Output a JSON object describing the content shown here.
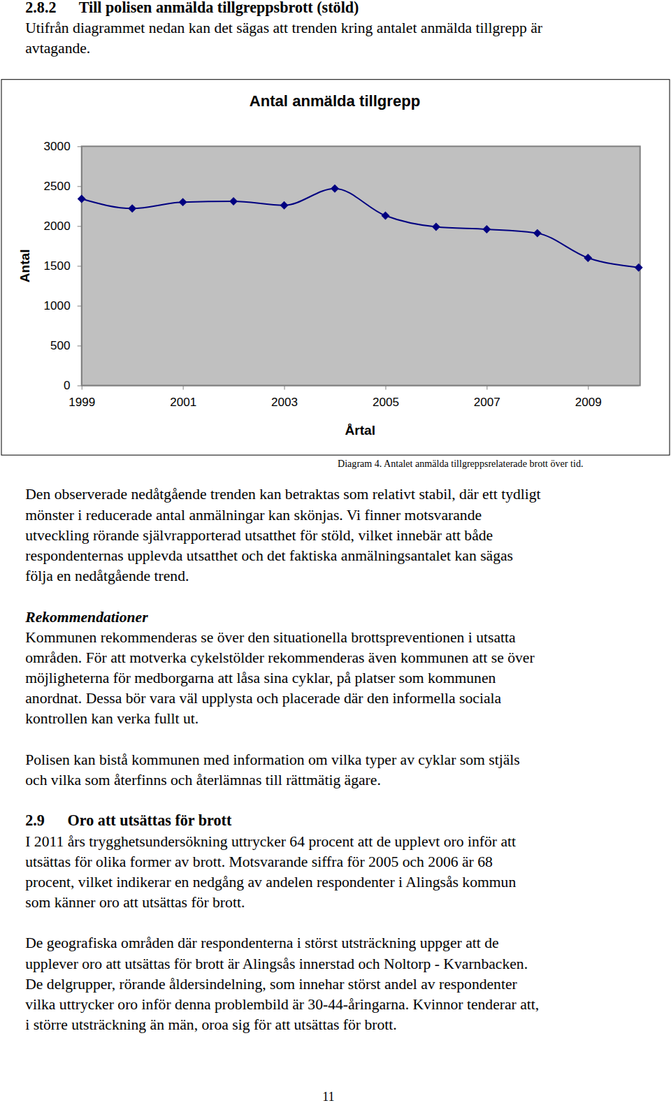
{
  "document": {
    "heading_1": {
      "number": "2.8.2",
      "text": "Till polisen anmälda tillgreppsbrott (stöld)"
    },
    "intro": [
      "Utifrån diagrammet nedan kan det sägas att trenden kring antalet anmälda tillgrepp är",
      "avtagande."
    ],
    "caption": "Diagram 4. Antalet anmälda tillgreppsrelaterade brott över tid.",
    "paragraph_1": [
      "Den observerade nedåtgående trenden kan betraktas som relativt stabil, där ett tydligt",
      "mönster i reducerade antal anmälningar kan skönjas. Vi finner motsvarande",
      "utveckling rörande självrapporterad utsatthet för stöld, vilket innebär att både",
      "respondenternas upplevda utsatthet och det faktiska anmälningsantalet kan sägas",
      "följa en nedåtgående trend."
    ],
    "subheading": "Rekommendationer",
    "recommendations": [
      "Kommunen rekommenderas se över den situationella brottspreventionen i utsatta",
      "områden. För att motverka cykelstölder rekommenderas även kommunen att se över",
      "möjligheterna för medborgarna att låsa sina cyklar, på platser som kommunen",
      "anordnat. Dessa bör vara väl upplysta och placerade där den informella sociala",
      "kontrollen kan verka fullt ut."
    ],
    "police": [
      "Polisen kan bistå kommunen med information om vilka typer av cyklar som stjäls",
      "och vilka som återfinns och återlämnas till rättmätig ägare."
    ],
    "heading_2": {
      "number": "2.9",
      "text": "Oro att utsättas för brott"
    },
    "paragraph_2": [
      "I 2011 års trygghetsundersökning uttrycker 64 procent att de upplevt oro inför att",
      "utsättas för olika former av brott. Motsvarande siffra för 2005 och 2006 är 68",
      "procent, vilket indikerar en nedgång av andelen respondenter i Alingsås kommun",
      "som känner oro att utsättas för brott."
    ],
    "paragraph_3": [
      "De geografiska områden där respondenterna i störst utsträckning uppger att de",
      "upplever oro att utsättas för brott är Alingsås innerstad och Noltorp - Kvarnbacken.",
      "De delgrupper, rörande åldersindelning, som innehar störst andel av respondenter",
      "vilka uttrycker oro inför denna problembild är 30-44-åringarna. Kvinnor tenderar att,",
      "i större utsträckning än män, oroa sig för att utsättas för brott."
    ],
    "page_number": "11"
  },
  "chart_data": {
    "type": "line",
    "title": "Antal anmälda tillgrepp",
    "x_label": "Årtal",
    "y_label": "Antal",
    "x": [
      1999,
      2000,
      2001,
      2002,
      2003,
      2004,
      2005,
      2006,
      2007,
      2008,
      2009,
      2010
    ],
    "values": [
      2340,
      2220,
      2300,
      2310,
      2260,
      2470,
      2130,
      1990,
      1960,
      1910,
      1600,
      1480
    ],
    "color": "#000080",
    "marker": "diamond",
    "xlim": [
      1999,
      2010
    ],
    "xticks": [
      1999,
      2001,
      2003,
      2005,
      2007,
      2009
    ],
    "ylim": [
      0,
      3000
    ],
    "yticks": [
      0,
      500,
      1000,
      1500,
      2000,
      2500,
      3000
    ],
    "grid": false
  }
}
